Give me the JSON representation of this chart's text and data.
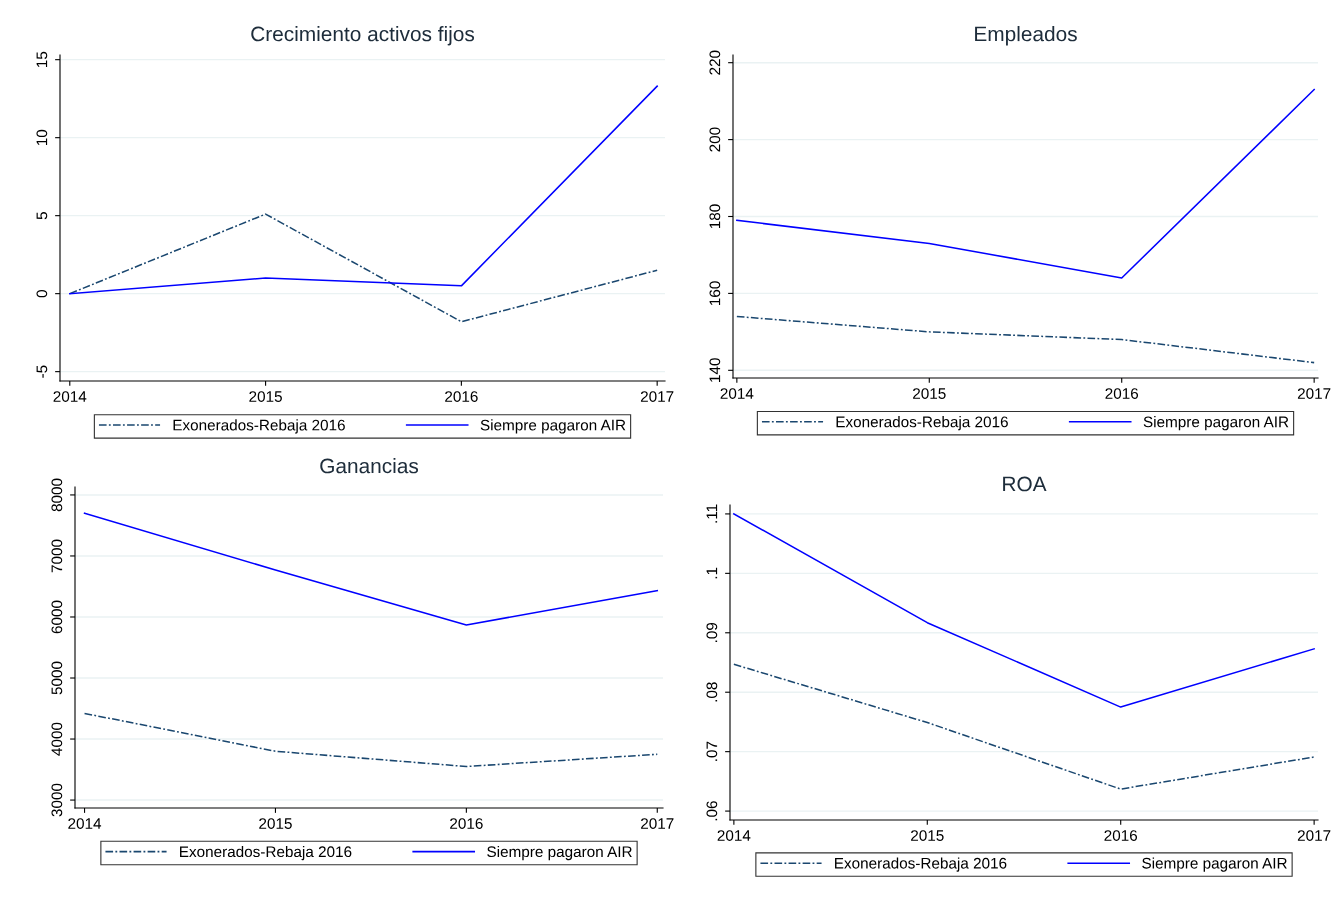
{
  "chart_data": [
    {
      "type": "line",
      "title": "Crecimiento activos fijos",
      "x": [
        2014,
        2015,
        2016,
        2017
      ],
      "xlim": [
        2013.95,
        2017.04
      ],
      "xticks": [
        2014,
        2015,
        2016,
        2017
      ],
      "ylim": [
        -5.6,
        15.3
      ],
      "yticks": [
        -5,
        0,
        5,
        10,
        15
      ],
      "grid": "y",
      "legend": "bottom",
      "series": [
        {
          "name": "Exonerados-Rebaja 2016",
          "color": "#1a476f",
          "line_style": "dashdot",
          "values": [
            0,
            5.1,
            -1.8,
            1.5
          ]
        },
        {
          "name": "Siempre pagaron AIR",
          "color": "#0000ff",
          "line_style": "solid",
          "values": [
            0,
            1.0,
            0.5,
            13.3
          ]
        }
      ]
    },
    {
      "type": "line",
      "title": "Empleados",
      "x": [
        2014,
        2015,
        2016,
        2017
      ],
      "xlim": [
        2013.98,
        2017.02
      ],
      "xticks": [
        2014,
        2015,
        2016,
        2017
      ],
      "ylim": [
        138,
        222
      ],
      "yticks": [
        140,
        160,
        180,
        200,
        220
      ],
      "grid": "y",
      "legend": "bottom",
      "series": [
        {
          "name": "Exonerados-Rebaja 2016",
          "color": "#1a476f",
          "line_style": "dashdot",
          "values": [
            154,
            150,
            148,
            142
          ]
        },
        {
          "name": "Siempre pagaron AIR",
          "color": "#0000ff",
          "line_style": "solid",
          "values": [
            179,
            173,
            164,
            213
          ]
        }
      ]
    },
    {
      "type": "line",
      "title": "Ganancias",
      "x": [
        2014,
        2015,
        2016,
        2017
      ],
      "xlim": [
        2013.95,
        2017.03
      ],
      "xticks": [
        2014,
        2015,
        2016,
        2017
      ],
      "ylim": [
        2870,
        8130
      ],
      "yticks": [
        3000,
        4000,
        5000,
        6000,
        7000,
        8000
      ],
      "grid": "y",
      "legend": "bottom",
      "series": [
        {
          "name": "Exonerados-Rebaja 2016",
          "color": "#1a476f",
          "line_style": "dashdot",
          "values": [
            4420,
            3800,
            3550,
            3750
          ]
        },
        {
          "name": "Siempre pagaron AIR",
          "color": "#0000ff",
          "line_style": "solid",
          "values": [
            7700,
            6770,
            5870,
            6430
          ]
        }
      ]
    },
    {
      "type": "line",
      "title": "ROA",
      "x": [
        2014,
        2015,
        2016,
        2017
      ],
      "xlim": [
        2013.98,
        2017.02
      ],
      "xticks": [
        2014,
        2015,
        2016,
        2017
      ],
      "ylim": [
        0.0585,
        0.1115
      ],
      "yticks": [
        {
          "value": 0.06,
          "label": ".06"
        },
        {
          "value": 0.07,
          "label": ".07"
        },
        {
          "value": 0.08,
          "label": ".08"
        },
        {
          "value": 0.09,
          "label": ".09"
        },
        {
          "value": 0.1,
          "label": ".1"
        },
        {
          "value": 0.11,
          "label": ".11"
        }
      ],
      "grid": "y",
      "legend": "bottom",
      "series": [
        {
          "name": "Exonerados-Rebaja 2016",
          "color": "#1a476f",
          "line_style": "dashdot",
          "values": [
            0.0847,
            0.0749,
            0.0637,
            0.0691
          ]
        },
        {
          "name": "Siempre pagaron AIR",
          "color": "#0000ff",
          "line_style": "solid",
          "values": [
            0.11,
            0.0917,
            0.0775,
            0.0873
          ]
        }
      ]
    }
  ]
}
